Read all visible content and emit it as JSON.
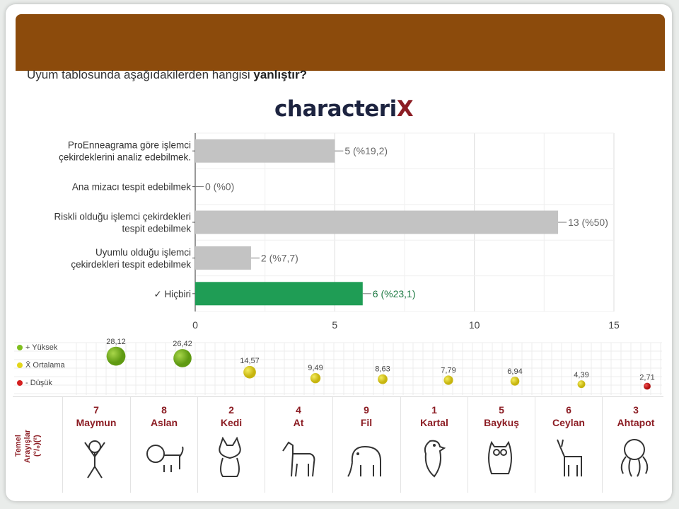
{
  "question": {
    "prefix": "Uyum tablosunda aşağıdakilerden hangisi ",
    "emphasis": "yanlıştır?"
  },
  "logo": {
    "text_main": "characteri",
    "text_x": "X"
  },
  "colors": {
    "header": "#8c4b0c",
    "bar": "#c3c3c3",
    "bar_correct": "#1f9d55",
    "animal_label": "#8c1d24"
  },
  "chart_data": [
    {
      "type": "bar",
      "orientation": "horizontal",
      "categories": [
        [
          "ProEnneagrama göre işlemci",
          "çekirdeklerini analiz edebilmek."
        ],
        [
          "Ana mizacı tespit edebilmek"
        ],
        [
          "Riskli olduğu işlemci çekirdekleri",
          "tespit edebilmek"
        ],
        [
          "Uyumlu olduğu işlemci",
          "çekirdekleri tespit edebilmek"
        ],
        [
          "✓ Hiçbiri"
        ]
      ],
      "values": [
        5,
        0,
        13,
        2,
        6
      ],
      "data_labels": [
        "5 (%19,2)",
        "0 (%0)",
        "13 (%50)",
        "2 (%7,7)",
        "6 (%23,1)"
      ],
      "highlight_index": 4,
      "xlim": [
        0,
        15
      ],
      "xticks": [
        "0",
        "5",
        "10",
        "15"
      ],
      "grid": true
    },
    {
      "type": "scatter",
      "legend": [
        "+ Yüksek",
        "X̄ Ortalama",
        "- Düşük"
      ],
      "legend_colors": [
        "#7fbf1e",
        "#e3d61a",
        "#d42020"
      ],
      "categories": [
        "Maymun",
        "Aslan",
        "Kedi",
        "At",
        "Fil",
        "Kartal",
        "Baykuş",
        "Ceylan",
        "Ahtapot"
      ],
      "values": [
        28.12,
        26.42,
        14.57,
        9.49,
        8.63,
        7.79,
        6.94,
        4.39,
        2.71
      ],
      "value_labels": [
        "28,12",
        "26,42",
        "14,57",
        "9,49",
        "8,63",
        "7,79",
        "6,94",
        "4,39",
        "2,71"
      ],
      "levels": [
        "high",
        "high",
        "mid",
        "mid",
        "mid",
        "mid",
        "mid",
        "mid",
        "low"
      ]
    }
  ],
  "animals": {
    "row_title_line1": "Temel",
    "row_title_line2": "Arayışlar",
    "row_title_line3": "(°/₀)(²)",
    "items": [
      {
        "num": "7",
        "name": "Maymun",
        "icon": "monkey-icon"
      },
      {
        "num": "8",
        "name": "Aslan",
        "icon": "lion-icon"
      },
      {
        "num": "2",
        "name": "Kedi",
        "icon": "cat-icon"
      },
      {
        "num": "4",
        "name": "At",
        "icon": "horse-icon"
      },
      {
        "num": "9",
        "name": "Fil",
        "icon": "elephant-icon"
      },
      {
        "num": "1",
        "name": "Kartal",
        "icon": "eagle-icon"
      },
      {
        "num": "5",
        "name": "Baykuş",
        "icon": "owl-icon"
      },
      {
        "num": "6",
        "name": "Ceylan",
        "icon": "gazelle-icon"
      },
      {
        "num": "3",
        "name": "Ahtapot",
        "icon": "octopus-icon"
      }
    ]
  }
}
